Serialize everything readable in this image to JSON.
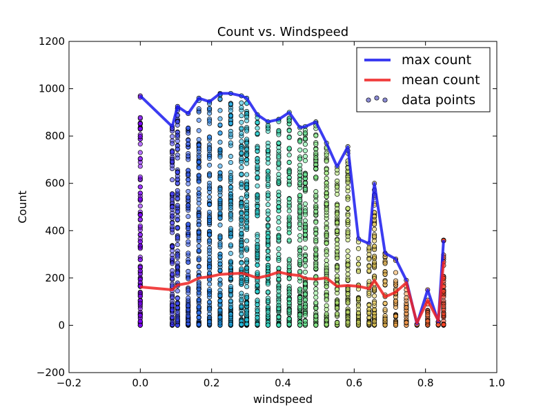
{
  "chart_data": {
    "type": "scatter",
    "title": "Count vs. Windspeed",
    "xlabel": "windspeed",
    "ylabel": "Count",
    "xlim": [
      -0.2,
      1.0
    ],
    "ylim": [
      -200,
      1200
    ],
    "xticks": [
      "−0.2",
      "0.0",
      "0.2",
      "0.4",
      "0.6",
      "0.8",
      "1.0"
    ],
    "yticks": [
      "−200",
      "0",
      "200",
      "400",
      "600",
      "800",
      "1000",
      "1200"
    ],
    "grid": false,
    "legend_position": "top-right",
    "legend": [
      {
        "label": "max count",
        "kind": "line",
        "color": "#1a1aee"
      },
      {
        "label": "mean count",
        "kind": "line",
        "color": "#ee2222"
      },
      {
        "label": "data points",
        "kind": "marker",
        "color": "#5a5ac0"
      }
    ],
    "series": [
      {
        "name": "max count",
        "kind": "line",
        "color": "#1a1aee",
        "x": [
          0.0,
          0.0896,
          0.1045,
          0.1343,
          0.1642,
          0.194,
          0.2239,
          0.2537,
          0.2836,
          0.2985,
          0.3284,
          0.3582,
          0.3881,
          0.4179,
          0.4478,
          0.4627,
          0.4925,
          0.5224,
          0.5522,
          0.5821,
          0.6119,
          0.6418,
          0.6567,
          0.6866,
          0.7164,
          0.7463,
          0.7761,
          0.806,
          0.8358,
          0.8507
        ],
        "y": [
          970,
          840,
          925,
          895,
          960,
          945,
          980,
          980,
          970,
          960,
          890,
          860,
          870,
          900,
          835,
          840,
          860,
          770,
          670,
          755,
          365,
          345,
          600,
          305,
          280,
          190,
          5,
          150,
          15,
          360
        ]
      },
      {
        "name": "mean count",
        "kind": "line",
        "color": "#ee2222",
        "x": [
          0.0,
          0.0896,
          0.1045,
          0.1343,
          0.1642,
          0.194,
          0.2239,
          0.2537,
          0.2836,
          0.2985,
          0.3284,
          0.3582,
          0.3881,
          0.4179,
          0.4478,
          0.4627,
          0.4925,
          0.5224,
          0.5522,
          0.5821,
          0.6119,
          0.6418,
          0.6567,
          0.6866,
          0.7164,
          0.7463,
          0.7761,
          0.806,
          0.8358,
          0.8507
        ],
        "y": [
          162,
          150,
          170,
          178,
          200,
          205,
          215,
          218,
          220,
          215,
          200,
          210,
          225,
          215,
          210,
          198,
          195,
          200,
          165,
          168,
          165,
          155,
          190,
          120,
          140,
          180,
          10,
          105,
          20,
          270
        ]
      },
      {
        "name": "data points",
        "kind": "scatter",
        "columns": [
          {
            "x": 0.0,
            "max": 970
          },
          {
            "x": 0.0896,
            "max": 840
          },
          {
            "x": 0.1045,
            "max": 925
          },
          {
            "x": 0.1343,
            "max": 895
          },
          {
            "x": 0.1642,
            "max": 960
          },
          {
            "x": 0.194,
            "max": 945
          },
          {
            "x": 0.2239,
            "max": 980
          },
          {
            "x": 0.2537,
            "max": 980
          },
          {
            "x": 0.2836,
            "max": 970
          },
          {
            "x": 0.2985,
            "max": 960
          },
          {
            "x": 0.3284,
            "max": 890
          },
          {
            "x": 0.3582,
            "max": 860
          },
          {
            "x": 0.3881,
            "max": 870
          },
          {
            "x": 0.4179,
            "max": 900
          },
          {
            "x": 0.4478,
            "max": 835
          },
          {
            "x": 0.4627,
            "max": 840
          },
          {
            "x": 0.4925,
            "max": 860
          },
          {
            "x": 0.5224,
            "max": 770
          },
          {
            "x": 0.5522,
            "max": 670
          },
          {
            "x": 0.5821,
            "max": 755
          },
          {
            "x": 0.6119,
            "max": 365
          },
          {
            "x": 0.6418,
            "max": 345
          },
          {
            "x": 0.6567,
            "max": 600
          },
          {
            "x": 0.6866,
            "max": 305
          },
          {
            "x": 0.7164,
            "max": 280
          },
          {
            "x": 0.7463,
            "max": 190
          },
          {
            "x": 0.7761,
            "max": 5
          },
          {
            "x": 0.806,
            "max": 150
          },
          {
            "x": 0.8358,
            "max": 15
          },
          {
            "x": 0.8507,
            "max": 360
          }
        ]
      }
    ]
  }
}
